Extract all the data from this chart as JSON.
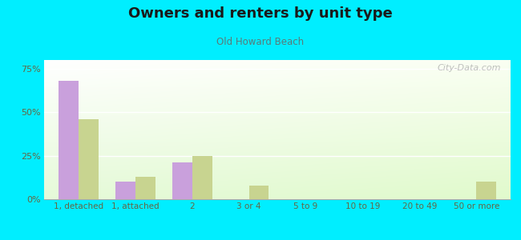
{
  "title": "Owners and renters by unit type",
  "subtitle": "Old Howard Beach",
  "categories": [
    "1, detached",
    "1, attached",
    "2",
    "3 or 4",
    "5 to 9",
    "10 to 19",
    "20 to 49",
    "50 or more"
  ],
  "owner_values": [
    68,
    10,
    21,
    0,
    0,
    0,
    0,
    0
  ],
  "renter_values": [
    46,
    13,
    25,
    8,
    0,
    0,
    0,
    10
  ],
  "owner_color": "#c9a0dc",
  "renter_color": "#c8d490",
  "background_color": "#00eeff",
  "ylim": [
    0,
    80
  ],
  "yticks": [
    0,
    25,
    50,
    75
  ],
  "ytick_labels": [
    "0%",
    "25%",
    "50%",
    "75%"
  ],
  "bar_width": 0.35,
  "watermark": "City-Data.com",
  "title_color": "#1a1a1a",
  "subtitle_color": "#5a7a7a",
  "tick_color": "#666644"
}
